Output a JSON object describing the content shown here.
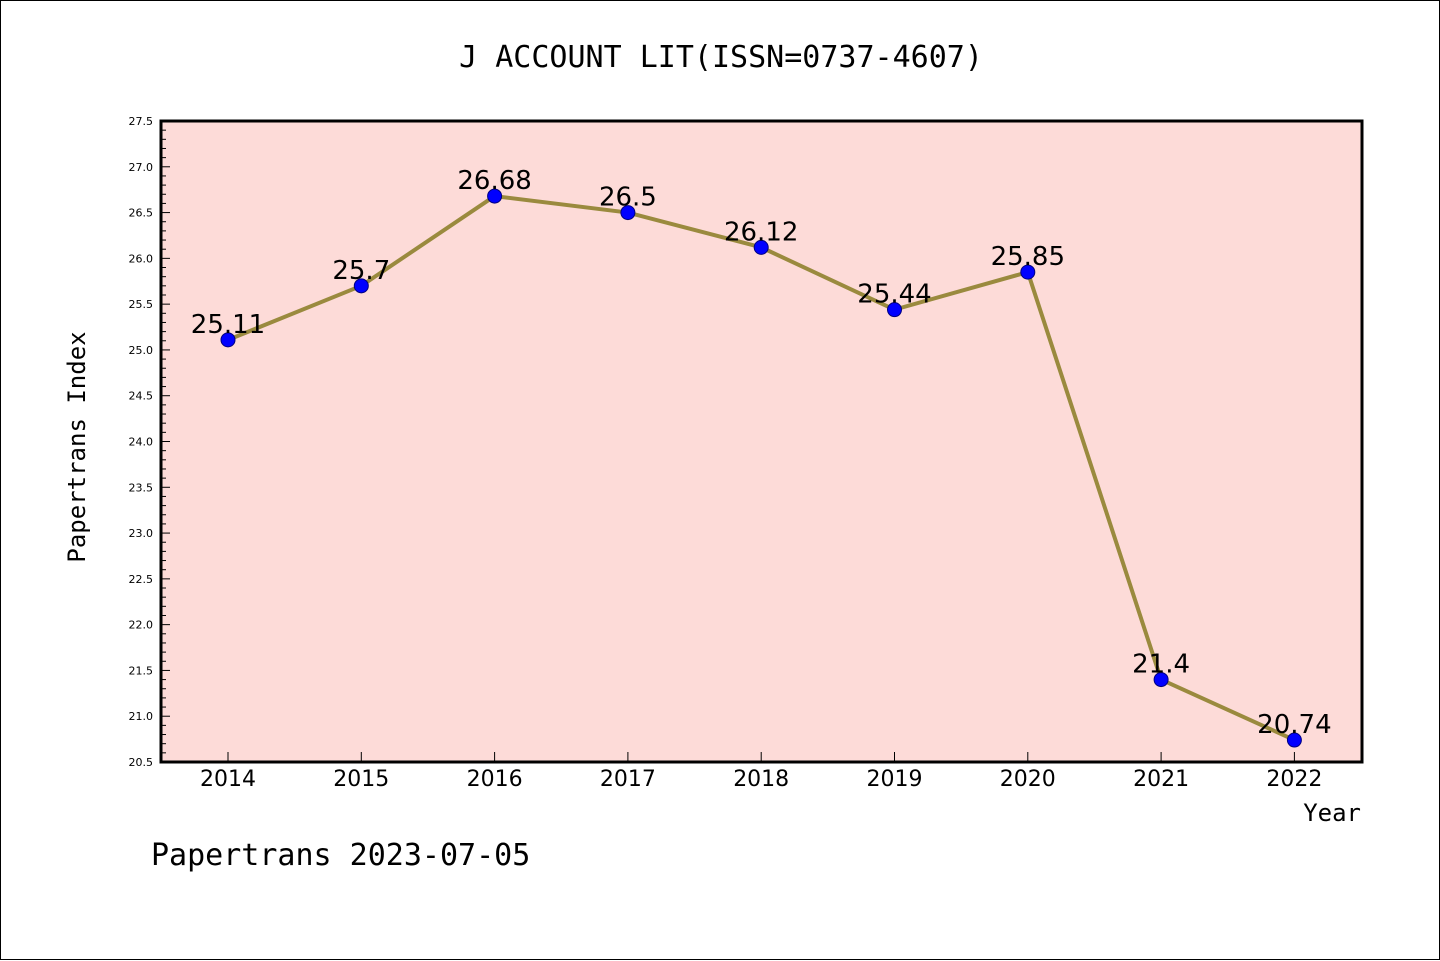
{
  "colors": {
    "plot_background": "#fddbd8",
    "line": "#9a8a3e",
    "marker": "#0000ff",
    "marker_edge": "#000080"
  },
  "chart_data": {
    "type": "line",
    "title": "J ACCOUNT LIT(ISSN=0737-4607)",
    "xlabel": "Year",
    "ylabel": "Papertrans Index",
    "categories": [
      "2014",
      "2015",
      "2016",
      "2017",
      "2018",
      "2019",
      "2020",
      "2021",
      "2022"
    ],
    "series": [
      {
        "values": [
          25.11,
          25.7,
          26.68,
          26.5,
          26.12,
          25.44,
          25.85,
          21.4,
          20.74
        ],
        "labels": [
          "25.11",
          "25.7",
          "26.68",
          "26.5",
          "26.12",
          "25.44",
          "25.85",
          "21.4",
          "20.74"
        ]
      }
    ],
    "ylim": [
      20.5,
      27.5
    ],
    "yticks": [
      "20.5",
      "21.0",
      "21.5",
      "22.0",
      "22.5",
      "23.0",
      "23.5",
      "24.0",
      "24.5",
      "25.0",
      "25.5",
      "26.0",
      "26.5",
      "27.0",
      "27.5"
    ],
    "grid": false,
    "legend": "none"
  },
  "footer": "Papertrans 2023-07-05"
}
